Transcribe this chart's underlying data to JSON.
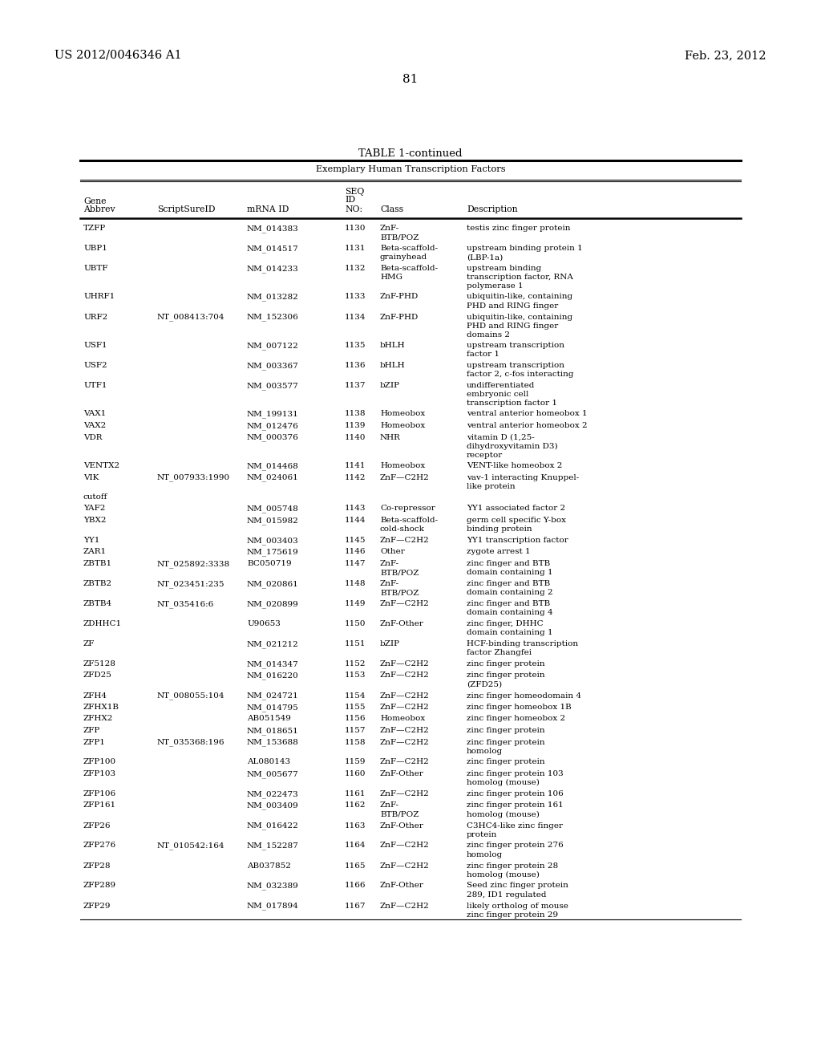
{
  "header_left": "US 2012/0046346 A1",
  "header_right": "Feb. 23, 2012",
  "page_number": "81",
  "table_title": "TABLE 1-continued",
  "table_subtitle": "Exemplary Human Transcription Factors",
  "bg_color": "#ffffff",
  "text_color": "#000000",
  "rows": [
    [
      "TZFP",
      "",
      "NM_014383",
      "1130",
      "ZnF-\nBTB/POZ",
      "testis zinc finger protein"
    ],
    [
      "UBP1",
      "",
      "NM_014517",
      "1131",
      "Beta-scaffold-\ngrainyhead",
      "upstream binding protein 1\n(LBP-1a)"
    ],
    [
      "UBTF",
      "",
      "NM_014233",
      "1132",
      "Beta-scaffold-\nHMG",
      "upstream binding\ntranscription factor, RNA\npolymerase 1"
    ],
    [
      "UHRF1",
      "",
      "NM_013282",
      "1133",
      "ZnF-PHD",
      "ubiquitin-like, containing\nPHD and RING finger"
    ],
    [
      "URF2",
      "NT_008413:704",
      "NM_152306",
      "1134",
      "ZnF-PHD",
      "ubiquitin-like, containing\nPHD and RING finger\ndomains 2"
    ],
    [
      "USF1",
      "",
      "NM_007122",
      "1135",
      "bHLH",
      "upstream transcription\nfactor 1"
    ],
    [
      "USF2",
      "",
      "NM_003367",
      "1136",
      "bHLH",
      "upstream transcription\nfactor 2, c-fos interacting"
    ],
    [
      "UTF1",
      "",
      "NM_003577",
      "1137",
      "bZIP",
      "undifferentiated\nembryonic cell\ntranscription factor 1"
    ],
    [
      "VAX1",
      "",
      "NM_199131",
      "1138",
      "Homeobox",
      "ventral anterior homeobox 1"
    ],
    [
      "VAX2",
      "",
      "NM_012476",
      "1139",
      "Homeobox",
      "ventral anterior homeobox 2"
    ],
    [
      "VDR",
      "",
      "NM_000376",
      "1140",
      "NHR",
      "vitamin D (1,25-\ndihydroxyvitamin D3)\nreceptor"
    ],
    [
      "VENTX2",
      "",
      "NM_014468",
      "1141",
      "Homeobox",
      "VENT-like homeobox 2"
    ],
    [
      "VIK",
      "NT_007933:1990",
      "NM_024061",
      "1142",
      "ZnF—C2H2",
      "vav-1 interacting Knuppel-\nlike protein"
    ],
    [
      "cutoff",
      "",
      "",
      "",
      "",
      ""
    ],
    [
      "YAF2",
      "",
      "NM_005748",
      "1143",
      "Co-repressor",
      "YY1 associated factor 2"
    ],
    [
      "YBX2",
      "",
      "NM_015982",
      "1144",
      "Beta-scaffold-\ncold-shock",
      "germ cell specific Y-box\nbinding protein"
    ],
    [
      "YY1",
      "",
      "NM_003403",
      "1145",
      "ZnF—C2H2",
      "YY1 transcription factor"
    ],
    [
      "ZAR1",
      "",
      "NM_175619",
      "1146",
      "Other",
      "zygote arrest 1"
    ],
    [
      "ZBTB1",
      "NT_025892:3338",
      "BC050719",
      "1147",
      "ZnF-\nBTB/POZ",
      "zinc finger and BTB\ndomain containing 1"
    ],
    [
      "ZBTB2",
      "NT_023451:235",
      "NM_020861",
      "1148",
      "ZnF-\nBTB/POZ",
      "zinc finger and BTB\ndomain containing 2"
    ],
    [
      "ZBTB4",
      "NT_035416:6",
      "NM_020899",
      "1149",
      "ZnF—C2H2",
      "zinc finger and BTB\ndomain containing 4"
    ],
    [
      "ZDHHC1",
      "",
      "U90653",
      "1150",
      "ZnF-Other",
      "zinc finger, DHHC\ndomain containing 1"
    ],
    [
      "ZF",
      "",
      "NM_021212",
      "1151",
      "bZIP",
      "HCF-binding transcription\nfactor Zhangfei"
    ],
    [
      "ZF5128",
      "",
      "NM_014347",
      "1152",
      "ZnF—C2H2",
      "zinc finger protein"
    ],
    [
      "ZFD25",
      "",
      "NM_016220",
      "1153",
      "ZnF—C2H2",
      "zinc finger protein\n(ZFD25)"
    ],
    [
      "ZFH4",
      "NT_008055:104",
      "NM_024721",
      "1154",
      "ZnF—C2H2",
      "zinc finger homeodomain 4"
    ],
    [
      "ZFHX1B",
      "",
      "NM_014795",
      "1155",
      "ZnF—C2H2",
      "zinc finger homeobox 1B"
    ],
    [
      "ZFHX2",
      "",
      "AB051549",
      "1156",
      "Homeobox",
      "zinc finger homeobox 2"
    ],
    [
      "ZFP",
      "",
      "NM_018651",
      "1157",
      "ZnF—C2H2",
      "zinc finger protein"
    ],
    [
      "ZFP1",
      "NT_035368:196",
      "NM_153688",
      "1158",
      "ZnF—C2H2",
      "zinc finger protein\nhomolog"
    ],
    [
      "ZFP100",
      "",
      "AL080143",
      "1159",
      "ZnF—C2H2",
      "zinc finger protein"
    ],
    [
      "ZFP103",
      "",
      "NM_005677",
      "1160",
      "ZnF-Other",
      "zinc finger protein 103\nhomolog (mouse)"
    ],
    [
      "ZFP106",
      "",
      "NM_022473",
      "1161",
      "ZnF—C2H2",
      "zinc finger protein 106"
    ],
    [
      "ZFP161",
      "",
      "NM_003409",
      "1162",
      "ZnF-\nBTB/POZ",
      "zinc finger protein 161\nhomolog (mouse)"
    ],
    [
      "ZFP26",
      "",
      "NM_016422",
      "1163",
      "ZnF-Other",
      "C3HC4-like zinc finger\nprotein"
    ],
    [
      "ZFP276",
      "NT_010542:164",
      "NM_152287",
      "1164",
      "ZnF—C2H2",
      "zinc finger protein 276\nhomolog"
    ],
    [
      "ZFP28",
      "",
      "AB037852",
      "1165",
      "ZnF—C2H2",
      "zinc finger protein 28\nhomolog (mouse)"
    ],
    [
      "ZFP289",
      "",
      "NM_032389",
      "1166",
      "ZnF-Other",
      "Seed zinc finger protein\n289, ID1 regulated"
    ],
    [
      "ZFP29",
      "",
      "NM_017894",
      "1167",
      "ZnF—C2H2",
      "likely ortholog of mouse\nzinc finger protein 29"
    ]
  ]
}
